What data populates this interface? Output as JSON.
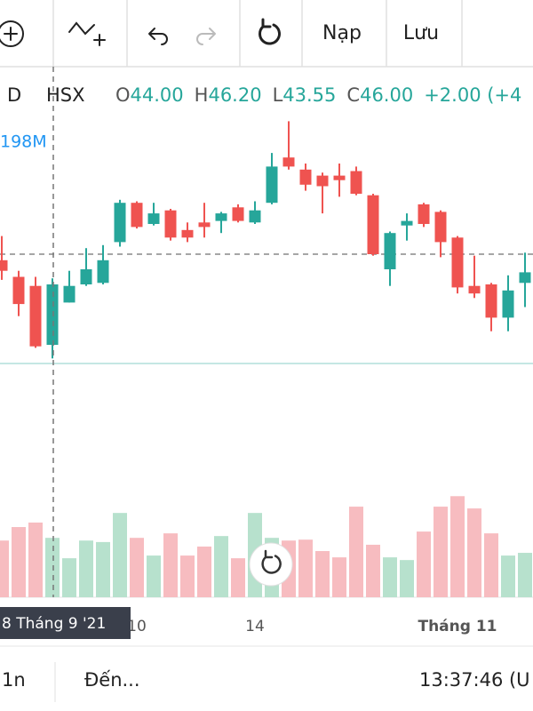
{
  "toolbar": {
    "reload": "Nạp",
    "save": "Lưu"
  },
  "legend": {
    "interval": "D",
    "exchange": "HSX",
    "open_label": "O",
    "open": "44.00",
    "high_label": "H",
    "high": "46.20",
    "low_label": "L",
    "low": "43.55",
    "close_label": "C",
    "close": "46.00",
    "change": "+2.00 (+4"
  },
  "volume_label": "198M",
  "crosshair_label": "8 Tháng 9 '21",
  "footer": {
    "range": "1n",
    "goto": "Đến...",
    "time": "13:37:46 (U"
  },
  "chart_data": {
    "type": "candlestick",
    "categories": [
      null,
      null,
      null,
      null,
      null,
      null,
      null,
      null,
      "10",
      null,
      null,
      null,
      null,
      null,
      null,
      "14",
      null,
      null,
      null,
      null,
      null,
      null,
      null,
      null,
      null,
      null,
      null,
      "Tháng 11",
      null,
      null,
      null,
      null
    ],
    "open": [
      46.8,
      46.25,
      45.95,
      44,
      45.4,
      46,
      46.05,
      47.4,
      48.7,
      48,
      48.45,
      47.8,
      48.05,
      48.1,
      48.55,
      48.05,
      48.7,
      50.2,
      49.8,
      49.6,
      49.6,
      49.75,
      48.95,
      46.5,
      47.95,
      48.65,
      48.4,
      47.55,
      45.95,
      46,
      44.9,
      46.05
    ],
    "high": [
      47.6,
      46.45,
      46.25,
      46.2,
      46.45,
      47.2,
      47.3,
      48.8,
      48.75,
      48.7,
      48.5,
      48.05,
      48.7,
      48.4,
      48.65,
      48.75,
      50.35,
      51.4,
      50,
      49.7,
      50,
      49.9,
      49,
      47.75,
      48.35,
      48.7,
      48.45,
      47.6,
      46.95,
      46.05,
      46.3,
      47.05
    ],
    "low": [
      46.15,
      44.95,
      43.9,
      43.55,
      45.4,
      45.95,
      46,
      47.25,
      47.85,
      47.95,
      47.45,
      47.4,
      47.55,
      47.7,
      48.05,
      48,
      48.65,
      49.8,
      49.1,
      48.35,
      48.9,
      48.95,
      46.95,
      45.95,
      47.45,
      47.9,
      46.9,
      45.7,
      45.55,
      44.45,
      44.45,
      45.25
    ],
    "close": [
      46.45,
      45.35,
      43.95,
      46,
      45.95,
      46.5,
      46.8,
      48.7,
      47.9,
      48.35,
      47.55,
      47.55,
      47.9,
      48.35,
      48.1,
      48.45,
      49.9,
      49.9,
      49.3,
      49.25,
      49.45,
      49,
      47,
      47.7,
      48.1,
      48,
      47.4,
      45.9,
      45.7,
      44.9,
      45.8,
      46.4
    ],
    "volume": [
      189,
      234,
      249,
      198,
      130,
      189,
      184,
      281,
      198,
      139,
      213,
      139,
      169,
      204,
      130,
      281,
      198,
      189,
      192,
      154,
      133,
      302,
      175,
      133,
      124,
      219,
      302,
      337,
      296,
      213,
      139,
      148
    ],
    "ylim": [
      40,
      53
    ],
    "volume_ylim": [
      0,
      400
    ],
    "price_line": 47,
    "up_color": "#26a69a",
    "down_color": "#ef5350",
    "up_volume_color": "#b7e1cd",
    "down_volume_color": "#f7bcc0"
  }
}
